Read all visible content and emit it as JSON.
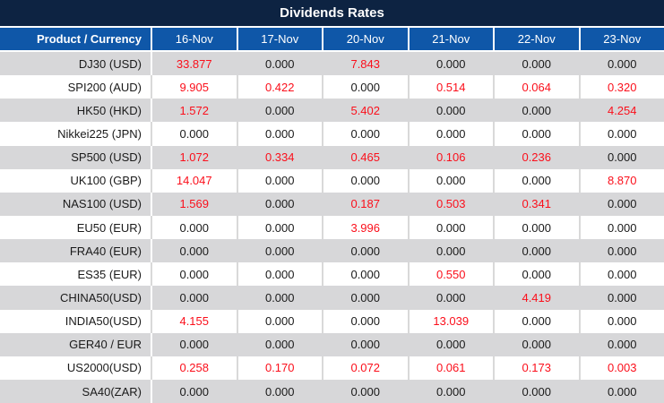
{
  "title": "Dividends Rates",
  "colors": {
    "title_bg": "#0d2342",
    "header_bg": "#0f57a8",
    "row_alt_bg": "#d7d7d9",
    "value_nonzero": "#fb0f1b",
    "value_zero": "#1a1a1a"
  },
  "chart_data": {
    "type": "table",
    "title": "Dividends Rates",
    "columns": [
      "Product / Currency",
      "16-Nov",
      "17-Nov",
      "20-Nov",
      "21-Nov",
      "22-Nov",
      "23-Nov"
    ],
    "rows": [
      {
        "product": "DJ30 (USD)",
        "values": [
          "33.877",
          "0.000",
          "7.843",
          "0.000",
          "0.000",
          "0.000"
        ]
      },
      {
        "product": "SPI200 (AUD)",
        "values": [
          "9.905",
          "0.422",
          "0.000",
          "0.514",
          "0.064",
          "0.320"
        ]
      },
      {
        "product": "HK50 (HKD)",
        "values": [
          "1.572",
          "0.000",
          "5.402",
          "0.000",
          "0.000",
          "4.254"
        ]
      },
      {
        "product": "Nikkei225 (JPN)",
        "values": [
          "0.000",
          "0.000",
          "0.000",
          "0.000",
          "0.000",
          "0.000"
        ]
      },
      {
        "product": "SP500 (USD)",
        "values": [
          "1.072",
          "0.334",
          "0.465",
          "0.106",
          "0.236",
          "0.000"
        ]
      },
      {
        "product": "UK100 (GBP)",
        "values": [
          "14.047",
          "0.000",
          "0.000",
          "0.000",
          "0.000",
          "8.870"
        ]
      },
      {
        "product": "NAS100 (USD)",
        "values": [
          "1.569",
          "0.000",
          "0.187",
          "0.503",
          "0.341",
          "0.000"
        ]
      },
      {
        "product": "EU50 (EUR)",
        "values": [
          "0.000",
          "0.000",
          "3.996",
          "0.000",
          "0.000",
          "0.000"
        ]
      },
      {
        "product": "FRA40 (EUR)",
        "values": [
          "0.000",
          "0.000",
          "0.000",
          "0.000",
          "0.000",
          "0.000"
        ]
      },
      {
        "product": "ES35 (EUR)",
        "values": [
          "0.000",
          "0.000",
          "0.000",
          "0.550",
          "0.000",
          "0.000"
        ]
      },
      {
        "product": "CHINA50(USD)",
        "values": [
          "0.000",
          "0.000",
          "0.000",
          "0.000",
          "4.419",
          "0.000"
        ]
      },
      {
        "product": "INDIA50(USD)",
        "values": [
          "4.155",
          "0.000",
          "0.000",
          "13.039",
          "0.000",
          "0.000"
        ]
      },
      {
        "product": "GER40 / EUR",
        "values": [
          "0.000",
          "0.000",
          "0.000",
          "0.000",
          "0.000",
          "0.000"
        ]
      },
      {
        "product": "US2000(USD)",
        "values": [
          "0.258",
          "0.170",
          "0.072",
          "0.061",
          "0.173",
          "0.003"
        ]
      },
      {
        "product": "SA40(ZAR)",
        "values": [
          "0.000",
          "0.000",
          "0.000",
          "0.000",
          "0.000",
          "0.000"
        ]
      }
    ]
  }
}
